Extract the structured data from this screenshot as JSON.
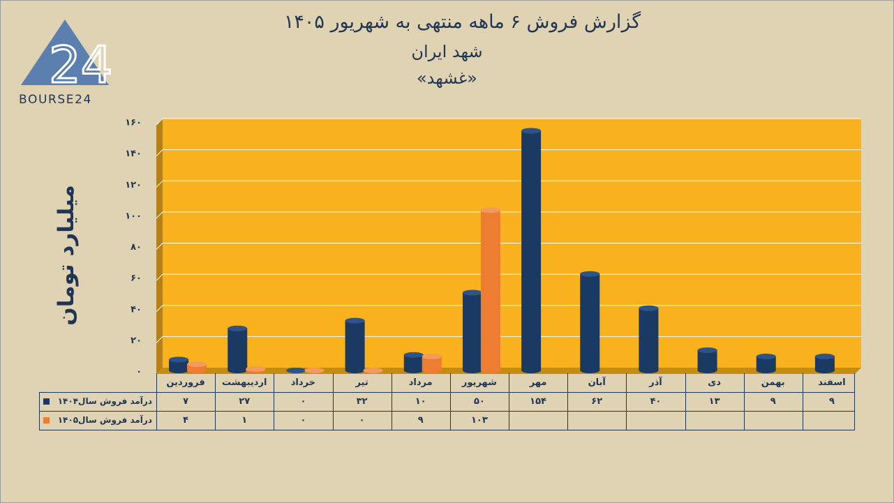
{
  "header": {
    "title_line1": "گزارش  فروش ۶ ماهه منتهی به شهریور ۱۴۰۵",
    "title_line2": "شهد ایران",
    "title_line3": "«غشهد»"
  },
  "logo": {
    "text": "BOURSE24",
    "mark": "24"
  },
  "colors": {
    "background": "#dfd3b3",
    "plot": "#f9b11d",
    "series_1404": "#1b3a63",
    "series_1405": "#ed7d31",
    "text": "#1f3553"
  },
  "chart_data": {
    "type": "bar",
    "ylabel": "میلیارد تومان",
    "ylim": [
      0,
      160
    ],
    "yticks": [
      "۰",
      "۲۰",
      "۴۰",
      "۶۰",
      "۸۰",
      "۱۰۰",
      "۱۲۰",
      "۱۴۰",
      "۱۶۰"
    ],
    "grid": true,
    "categories": [
      "فروردین",
      "اردیبهشت",
      "خرداد",
      "تیر",
      "مرداد",
      "شهریور",
      "مهر",
      "آبان",
      "آذر",
      "دی",
      "بهمن",
      "اسفند"
    ],
    "series": [
      {
        "name": "درآمد فروش سال۱۴۰۴",
        "values": [
          7,
          27,
          0,
          32,
          10,
          50,
          154,
          62,
          40,
          13,
          9,
          9
        ],
        "labels": [
          "۷",
          "۲۷",
          "۰",
          "۳۲",
          "۱۰",
          "۵۰",
          "۱۵۴",
          "۶۲",
          "۴۰",
          "۱۳",
          "۹",
          "۹"
        ]
      },
      {
        "name": "درآمد فروش سال۱۴۰۵",
        "values": [
          4,
          1,
          0,
          0,
          9,
          103,
          null,
          null,
          null,
          null,
          null,
          null
        ],
        "labels": [
          "۴",
          "۱",
          "۰",
          "۰",
          "۹",
          "۱۰۳",
          "",
          "",
          "",
          "",
          "",
          ""
        ]
      }
    ]
  }
}
